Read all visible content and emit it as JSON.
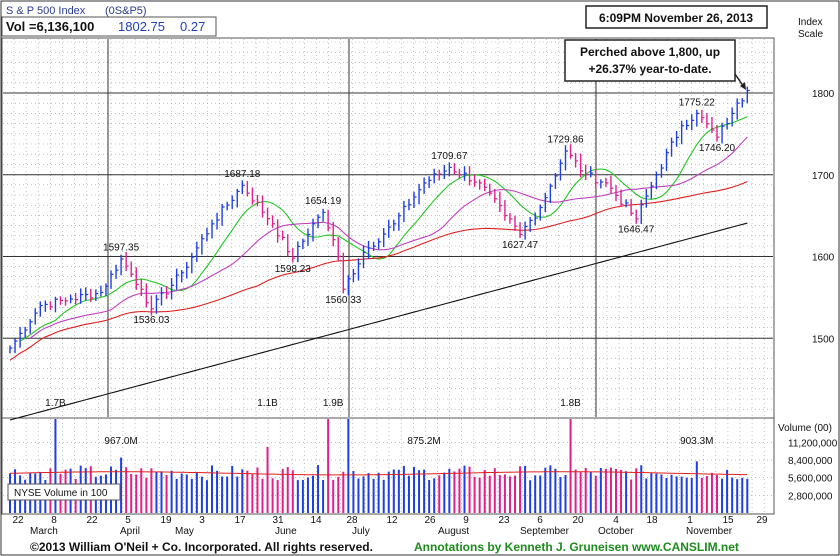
{
  "header": {
    "index_name": "S & P 500 Index",
    "symbol": "(0S&P5)",
    "vol_label": "Vol =6,136,100",
    "price": "1802.75",
    "change": "0.27",
    "timestamp": "6:09PM November 26, 2013",
    "index_scale_line1": "Index",
    "index_scale_line2": "Scale"
  },
  "callout": {
    "line1": "Perched above 1,800, up",
    "line2": "+26.37% year-to-date."
  },
  "volume_panel": {
    "legend": "NYSE Volume in 100",
    "axis_title": "Volume (00)",
    "ticks": [
      {
        "label": "11,200,000",
        "value": 11200000
      },
      {
        "label": "8,400,000",
        "value": 8400000
      },
      {
        "label": "5,600,000",
        "value": 5600000
      },
      {
        "label": "2,800,000",
        "value": 2800000
      }
    ],
    "labels": [
      {
        "text": "1.7B",
        "x": 9
      },
      {
        "text": "967.0M",
        "x": 22
      },
      {
        "text": "1.1B",
        "x": 51
      },
      {
        "text": "1.9B",
        "x": 64
      },
      {
        "text": "875.2M",
        "x": 82
      },
      {
        "text": "1.8B",
        "x": 111
      },
      {
        "text": "903.3M",
        "x": 136
      }
    ]
  },
  "footer": {
    "copyright": "©2013 William O'Neil + Co. Incorporated. All rights reserved.",
    "annotations": "Annotations by Kenneth J. Gruneisen www.CANSLIM.net"
  },
  "colors": {
    "grid": "#9a9a9a",
    "up_bar": "#1f3fe0",
    "down_bar": "#e0208a",
    "ma50": "#22c422",
    "ma_short": "#c040c0",
    "ma200_red": "#e02020",
    "ma_long": "#111111"
  },
  "chart_data": {
    "type": "ohlc",
    "y_axis": {
      "ticks": [
        1500,
        1600,
        1700,
        1800
      ],
      "range": [
        1410,
        1865
      ]
    },
    "x_axis": {
      "day_ticks": [
        "22",
        "8",
        "22",
        "5",
        "19",
        "3",
        "17",
        "31",
        "14",
        "28",
        "12",
        "26",
        "9",
        "23",
        "6",
        "20",
        "4",
        "18",
        "1",
        "15",
        "29"
      ],
      "months": [
        "March",
        "April",
        "May",
        "June",
        "July",
        "August",
        "September",
        "October",
        "November"
      ]
    },
    "price_labels": [
      {
        "text": "1597.35",
        "x": 22,
        "y": 1597.35,
        "pos": "above"
      },
      {
        "text": "1536.03",
        "x": 28,
        "y": 1536.03,
        "pos": "below"
      },
      {
        "text": "1687.18",
        "x": 46,
        "y": 1687.18,
        "pos": "above"
      },
      {
        "text": "1598.23",
        "x": 56,
        "y": 1598.23,
        "pos": "below"
      },
      {
        "text": "1654.19",
        "x": 62,
        "y": 1654.19,
        "pos": "above"
      },
      {
        "text": "1560.33",
        "x": 66,
        "y": 1560.33,
        "pos": "below"
      },
      {
        "text": "1709.67",
        "x": 87,
        "y": 1709.67,
        "pos": "above"
      },
      {
        "text": "1627.47",
        "x": 101,
        "y": 1627.47,
        "pos": "below"
      },
      {
        "text": "1729.86",
        "x": 110,
        "y": 1729.86,
        "pos": "above"
      },
      {
        "text": "1646.47",
        "x": 124,
        "y": 1646.47,
        "pos": "below"
      },
      {
        "text": "1775.22",
        "x": 136,
        "y": 1775.22,
        "pos": "above"
      },
      {
        "text": "1746.20",
        "x": 140,
        "y": 1746.2,
        "pos": "below"
      }
    ]
  }
}
